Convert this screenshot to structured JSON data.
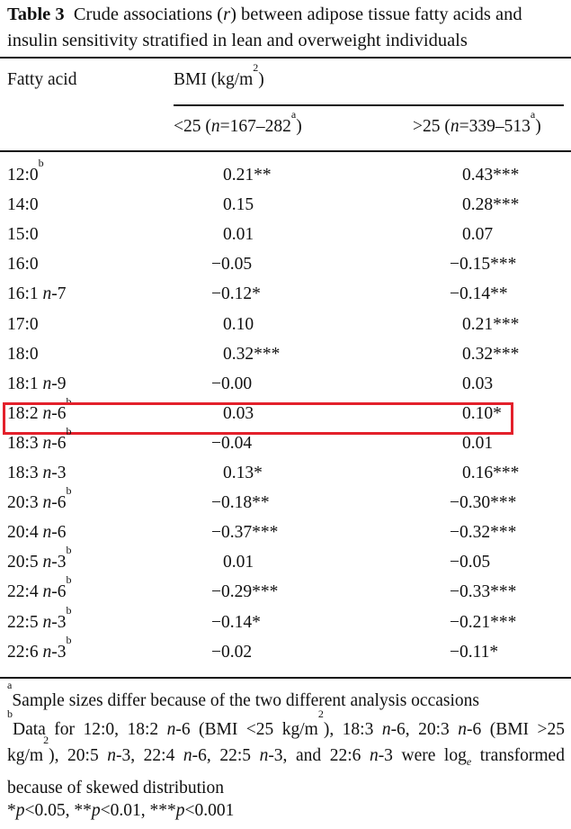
{
  "title": {
    "label": "Table 3",
    "text": "Crude associations (r) between adipose tissue fatty acids and insulin sensitivity stratified in lean and overweight individuals"
  },
  "header": {
    "col1": "Fatty acid",
    "group": "BMI (kg/m",
    "group_sup": "2",
    "group_end": ")",
    "col2": {
      "pre": "<25 (",
      "n": "n",
      "mid": "=167–282",
      "sup": "a",
      "end": ")"
    },
    "col3": {
      "pre": ">25 (",
      "n": "n",
      "mid": "=339–513",
      "sup": "a",
      "end": ")"
    }
  },
  "rows": [
    {
      "base": "12:0",
      "omega": "",
      "sup": "b",
      "lean": "0.21**",
      "overweight": "0.43***"
    },
    {
      "base": "14:0",
      "omega": "",
      "sup": "",
      "lean": "0.15",
      "overweight": "0.28***"
    },
    {
      "base": "15:0",
      "omega": "",
      "sup": "",
      "lean": "0.01",
      "overweight": "0.07"
    },
    {
      "base": "16:0",
      "omega": "",
      "sup": "",
      "lean": "−0.05",
      "overweight": "−0.15***"
    },
    {
      "base": "16:1",
      "omega": "-7",
      "sup": "",
      "lean": "−0.12*",
      "overweight": "−0.14**"
    },
    {
      "base": "17:0",
      "omega": "",
      "sup": "",
      "lean": "0.10",
      "overweight": "0.21***"
    },
    {
      "base": "18:0",
      "omega": "",
      "sup": "",
      "lean": "0.32***",
      "overweight": "0.32***"
    },
    {
      "base": "18:1",
      "omega": "-9",
      "sup": "",
      "lean": "−0.00",
      "overweight": "0.03"
    },
    {
      "base": "18:2",
      "omega": "-6",
      "sup": "b",
      "lean": "0.03",
      "overweight": "0.10*",
      "highlighted": true
    },
    {
      "base": "18:3",
      "omega": "-6",
      "sup": "b",
      "lean": "−0.04",
      "overweight": "0.01"
    },
    {
      "base": "18:3",
      "omega": "-3",
      "sup": "",
      "lean": "0.13*",
      "overweight": "0.16***"
    },
    {
      "base": "20:3",
      "omega": "-6",
      "sup": "b",
      "lean": "−0.18**",
      "overweight": "−0.30***"
    },
    {
      "base": "20:4",
      "omega": "-6",
      "sup": "",
      "lean": "−0.37***",
      "overweight": "−0.32***"
    },
    {
      "base": "20:5",
      "omega": "-3",
      "sup": "b",
      "lean": "0.01",
      "overweight": "−0.05"
    },
    {
      "base": "22:4",
      "omega": "-6",
      "sup": "b",
      "lean": "−0.29***",
      "overweight": "−0.33***"
    },
    {
      "base": "22:5",
      "omega": "-3",
      "sup": "b",
      "lean": "−0.14*",
      "overweight": "−0.21***"
    },
    {
      "base": "22:6",
      "omega": "-3",
      "sup": "b",
      "lean": "−0.02",
      "overweight": "−0.11*"
    }
  ],
  "highlight_color": "#e3202b",
  "footnotes": {
    "a": {
      "mark": "a",
      "text": "Sample sizes differ because of the two different analysis occasions"
    },
    "b": {
      "mark": "b",
      "segments": [
        {
          "t": "Data for 12:0, 18:2 "
        },
        {
          "i": "n"
        },
        {
          "t": "-6 (BMI <25 kg/m"
        },
        {
          "s": "2"
        },
        {
          "t": "), 18:3 "
        },
        {
          "i": "n"
        },
        {
          "t": "-6, 20:3 "
        },
        {
          "i": "n"
        },
        {
          "t": "-6 (BMI >25 kg/m"
        },
        {
          "s": "2"
        },
        {
          "t": "), 20:5 "
        },
        {
          "i": "n"
        },
        {
          "t": "-3, 22:4 "
        },
        {
          "i": "n"
        },
        {
          "t": "-6, 22:5 "
        },
        {
          "i": "n"
        },
        {
          "t": "-3, and 22:6 "
        },
        {
          "i": "n"
        },
        {
          "t": "-3 were log"
        },
        {
          "sub": "e"
        },
        {
          "t": " transformed because of skewed distribution"
        }
      ]
    },
    "p": {
      "segments": [
        {
          "t": "*"
        },
        {
          "i": "p"
        },
        {
          "t": "<0.05, **"
        },
        {
          "i": "p"
        },
        {
          "t": "<0.01, ***"
        },
        {
          "i": "p"
        },
        {
          "t": "<0.001"
        }
      ]
    }
  }
}
